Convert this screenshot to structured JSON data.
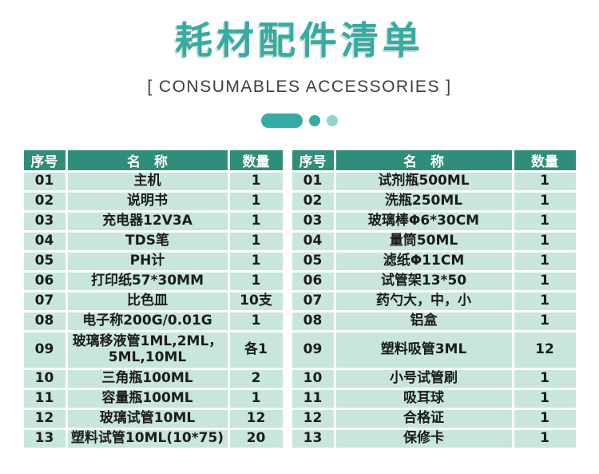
{
  "header": {
    "title": "耗材配件清单",
    "subtitle": "[ CONSUMABLES ACCESSORIES ]"
  },
  "colors": {
    "accent": "#35aca1",
    "accent_light": "#92d5cd",
    "header_bg": "#2e8e79",
    "row_bg": "#c8e5de"
  },
  "tables": [
    {
      "headers": [
        "序号",
        "名　称",
        "数量"
      ],
      "rows": [
        [
          "01",
          "主机",
          "1"
        ],
        [
          "02",
          "说明书",
          "1"
        ],
        [
          "03",
          "充电器12V3A",
          "1"
        ],
        [
          "04",
          "TDS笔",
          "1"
        ],
        [
          "05",
          "PH计",
          "1"
        ],
        [
          "06",
          "打印纸57*30MM",
          "1"
        ],
        [
          "07",
          "比色皿",
          "10支"
        ],
        [
          "08",
          "电子称200G/0.01G",
          "1"
        ],
        [
          "09",
          "玻璃移液管1ML,2ML，5ML,10ML",
          "各1"
        ],
        [
          "10",
          "三角瓶100ML",
          "2"
        ],
        [
          "11",
          "容量瓶100ML",
          "1"
        ],
        [
          "12",
          "玻璃试管10ML",
          "12"
        ],
        [
          "13",
          "塑料试管10ML(10*75)",
          "20"
        ]
      ]
    },
    {
      "headers": [
        "序号",
        "名　称",
        "数量"
      ],
      "rows": [
        [
          "01",
          "试剂瓶500ML",
          "1"
        ],
        [
          "02",
          "洗瓶250ML",
          "1"
        ],
        [
          "03",
          "玻璃棒Φ6*30CM",
          "1"
        ],
        [
          "04",
          "量筒50ML",
          "1"
        ],
        [
          "05",
          "滤纸Φ11CM",
          "1"
        ],
        [
          "06",
          "试管架13*50",
          "1"
        ],
        [
          "07",
          "药勺大，中，小",
          "1"
        ],
        [
          "08",
          "铝盒",
          "1"
        ],
        [
          "09",
          "塑料吸管3ML",
          "12"
        ],
        [
          "10",
          "小号试管刷",
          "1"
        ],
        [
          "11",
          "吸耳球",
          "1"
        ],
        [
          "12",
          "合格证",
          "1"
        ],
        [
          "13",
          "保修卡",
          "1"
        ]
      ]
    }
  ]
}
